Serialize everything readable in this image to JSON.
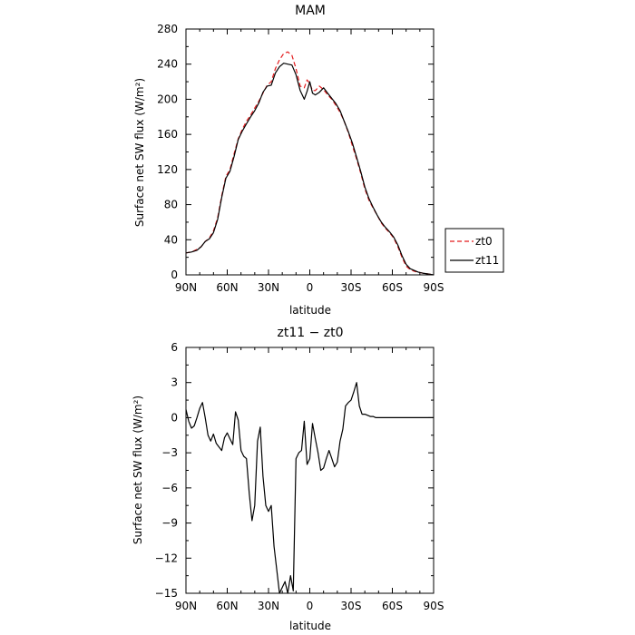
{
  "chart_data": [
    {
      "type": "line",
      "title": "MAM",
      "xlabel": "latitude",
      "ylabel": "Surface net SW flux (W/m²)",
      "xlim": [
        90,
        -90
      ],
      "ylim": [
        0,
        280
      ],
      "x_tick_values": [
        90,
        60,
        30,
        0,
        -30,
        -60,
        -90
      ],
      "x_tick_labels": [
        "90N",
        "60N",
        "30N",
        "0",
        "30S",
        "60S",
        "90S"
      ],
      "y_tick_values": [
        0,
        40,
        80,
        120,
        160,
        200,
        240,
        280
      ],
      "y_tick_labels": [
        "0",
        "40",
        "80",
        "120",
        "160",
        "200",
        "240",
        "280"
      ],
      "legend_position": "right",
      "series": [
        {
          "name": "zt0",
          "color": "#e31a1c",
          "dash": "dashed",
          "x": [
            90,
            86,
            82,
            79,
            76,
            73,
            70,
            67,
            64,
            61,
            58,
            55,
            52,
            49,
            46,
            43,
            40,
            37,
            34,
            31,
            28,
            25,
            22,
            19,
            16,
            13,
            10,
            7,
            4,
            2,
            0,
            -2,
            -4,
            -7,
            -10,
            -13,
            -16,
            -19,
            -22,
            -25,
            -28,
            -31,
            -34,
            -37,
            -40,
            -43,
            -46,
            -49,
            -52,
            -55,
            -58,
            -61,
            -64,
            -67,
            -70,
            -73,
            -76,
            -79,
            -82,
            -86,
            -90
          ],
          "y": [
            25,
            26,
            29,
            32,
            38,
            42,
            50,
            65,
            90,
            112,
            120,
            138,
            155,
            166,
            175,
            182,
            190,
            198,
            207,
            216,
            220,
            235,
            245,
            252,
            254,
            250,
            235,
            215,
            213,
            222,
            218,
            210,
            210,
            215,
            211,
            205,
            200,
            193,
            185,
            175,
            162,
            147,
            132,
            116,
            98,
            85,
            76,
            68,
            59,
            53,
            48,
            42,
            32,
            20,
            10,
            6,
            4,
            3,
            2,
            1,
            0
          ]
        },
        {
          "name": "zt11",
          "color": "#000000",
          "dash": "solid",
          "x": [
            90,
            86,
            82,
            79,
            76,
            73,
            70,
            67,
            64,
            61,
            58,
            55,
            52,
            49,
            46,
            43,
            40,
            37,
            34,
            31,
            28,
            25,
            22,
            19,
            16,
            13,
            10,
            7,
            4,
            2,
            0,
            -2,
            -4,
            -7,
            -10,
            -13,
            -16,
            -19,
            -22,
            -25,
            -28,
            -31,
            -34,
            -37,
            -40,
            -43,
            -46,
            -49,
            -52,
            -55,
            -58,
            -61,
            -64,
            -67,
            -70,
            -73,
            -76,
            -79,
            -82,
            -86,
            -90
          ],
          "y": [
            25,
            26,
            28,
            32,
            38,
            41,
            48,
            63,
            88,
            110,
            118,
            135,
            154,
            164,
            172,
            180,
            187,
            196,
            208,
            215,
            216,
            230,
            237,
            241,
            240,
            239,
            228,
            210,
            200,
            209,
            220,
            207,
            205,
            208,
            213,
            207,
            201,
            195,
            187,
            175,
            163,
            150,
            134,
            118,
            100,
            87,
            77,
            68,
            60,
            54,
            49,
            43,
            34,
            22,
            12,
            7,
            5,
            3,
            2,
            1,
            0
          ]
        }
      ]
    },
    {
      "type": "line",
      "title": "zt11 − zt0",
      "xlabel": "latitude",
      "ylabel": "Surface net SW flux (W/m²)",
      "xlim": [
        90,
        -90
      ],
      "ylim": [
        -15,
        6
      ],
      "x_tick_values": [
        90,
        60,
        30,
        0,
        -30,
        -60,
        -90
      ],
      "x_tick_labels": [
        "90N",
        "60N",
        "30N",
        "0",
        "30S",
        "60S",
        "90S"
      ],
      "y_tick_values": [
        -15,
        -12,
        -9,
        -6,
        -3,
        0,
        3,
        6
      ],
      "y_tick_labels": [
        "−15",
        "−12",
        "−9",
        "−6",
        "−3",
        "0",
        "3",
        "6"
      ],
      "series": [
        {
          "name": "",
          "color": "#000000",
          "dash": "solid",
          "x": [
            90,
            88,
            86,
            84,
            82,
            80,
            78,
            76,
            74,
            72,
            70,
            68,
            66,
            64,
            62,
            60,
            58,
            56,
            54,
            52,
            50,
            48,
            46,
            44,
            42,
            40,
            38,
            36,
            34,
            32,
            30,
            28,
            26,
            24,
            22,
            20,
            18,
            16,
            14,
            12,
            10,
            8,
            6,
            4,
            2,
            0,
            -2,
            -4,
            -6,
            -8,
            -10,
            -12,
            -14,
            -16,
            -18,
            -20,
            -22,
            -24,
            -26,
            -28,
            -30,
            -32,
            -34,
            -36,
            -38,
            -40,
            -42,
            -44,
            -46,
            -48,
            -50,
            -52,
            -54,
            -56,
            -58,
            -60,
            -62,
            -64,
            -66,
            -68,
            -70,
            -72,
            -74,
            -76,
            -78,
            -80,
            -82,
            -84,
            -86,
            -88,
            -90
          ],
          "y": [
            0.7,
            -0.3,
            -0.9,
            -0.7,
            0.0,
            0.8,
            1.3,
            0.0,
            -1.5,
            -2.0,
            -1.4,
            -2.2,
            -2.5,
            -2.8,
            -1.7,
            -1.3,
            -1.8,
            -2.3,
            0.5,
            -0.2,
            -2.8,
            -3.3,
            -3.5,
            -6.5,
            -8.8,
            -7.5,
            -2.0,
            -0.8,
            -5.0,
            -7.5,
            -8.0,
            -7.5,
            -11.0,
            -13.0,
            -15.0,
            -14.5,
            -14.0,
            -15.0,
            -13.5,
            -14.8,
            -3.5,
            -3.0,
            -2.8,
            -0.3,
            -4.0,
            -3.5,
            -0.5,
            -1.8,
            -3.0,
            -4.5,
            -4.3,
            -3.5,
            -2.8,
            -3.5,
            -4.2,
            -3.8,
            -2.0,
            -1.0,
            1.0,
            1.3,
            1.5,
            2.2,
            3.0,
            1.0,
            0.3,
            0.3,
            0.2,
            0.1,
            0.1,
            0.0,
            0.0,
            0.0,
            0.0,
            0.0,
            0.0,
            0.0,
            0.0,
            0.0,
            0.0,
            0.0,
            0.0,
            0.0,
            0.0,
            0.0,
            0.0,
            0.0,
            0.0,
            0.0,
            0.0,
            0.0,
            0.0
          ]
        }
      ]
    }
  ]
}
